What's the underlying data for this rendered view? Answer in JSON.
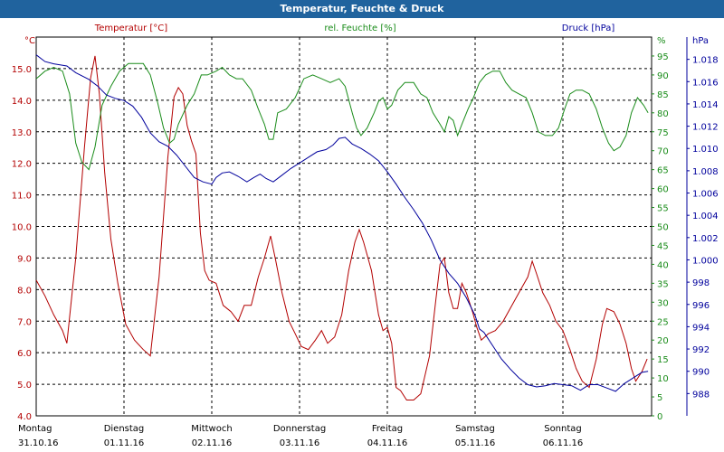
{
  "title": "Temperatur, Feuchte & Druck",
  "colors": {
    "temp": "#b30000",
    "humidity": "#1a8c1a",
    "pressure": "#00009c",
    "header": "#20639e"
  },
  "chart_data": {
    "type": "line",
    "title": "Temperatur, Feuchte & Druck",
    "grid": true,
    "x_range_days": [
      0,
      7
    ],
    "x_ticks": [
      {
        "day": "Montag",
        "date": "31.10.16",
        "pos": 0
      },
      {
        "day": "Dienstag",
        "date": "01.11.16",
        "pos": 1
      },
      {
        "day": "Mittwoch",
        "date": "02.11.16",
        "pos": 2
      },
      {
        "day": "Donnerstag",
        "date": "03.11.16",
        "pos": 3
      },
      {
        "day": "Freitag",
        "date": "04.11.16",
        "pos": 4
      },
      {
        "day": "Samstag",
        "date": "05.11.16",
        "pos": 5
      },
      {
        "day": "Sonntag",
        "date": "06.11.16",
        "pos": 6
      }
    ],
    "axes": {
      "temp": {
        "label": "Temperatur [°C]",
        "unit": "°C",
        "min": 4.0,
        "max": 16.0,
        "ticks": [
          "15.0",
          "14.0",
          "13.0",
          "12.0",
          "11.0",
          "10.0",
          "9.0",
          "8.0",
          "7.0",
          "6.0",
          "5.0",
          "4.0"
        ]
      },
      "humidity": {
        "label": "rel. Feuchte [%]",
        "unit": "%",
        "min": 0,
        "max": 100,
        "ticks": [
          "95",
          "90",
          "85",
          "80",
          "75",
          "70",
          "65",
          "60",
          "55",
          "50",
          "45",
          "40",
          "35",
          "30",
          "25",
          "20",
          "15",
          "10",
          "5",
          "0"
        ]
      },
      "pressure": {
        "label": "Druck [hPa]",
        "unit": "hPa",
        "min": 986,
        "max": 1020,
        "ticks": [
          "1.018",
          "1.016",
          "1.014",
          "1.012",
          "1.010",
          "1.008",
          "1.006",
          "1.004",
          "1.002",
          "1.000",
          "998",
          "996",
          "994",
          "992",
          "990",
          "988"
        ]
      }
    },
    "series": [
      {
        "name": "Temperatur [°C]",
        "axis": "temp",
        "color": "#b30000",
        "points": [
          [
            0,
            8.3
          ],
          [
            0.1,
            7.8
          ],
          [
            0.2,
            7.2
          ],
          [
            0.3,
            6.7
          ],
          [
            0.35,
            6.3
          ],
          [
            0.45,
            9.0
          ],
          [
            0.55,
            12.5
          ],
          [
            0.62,
            14.7
          ],
          [
            0.67,
            15.4
          ],
          [
            0.72,
            14.2
          ],
          [
            0.78,
            11.7
          ],
          [
            0.85,
            9.6
          ],
          [
            0.93,
            8.2
          ],
          [
            1.02,
            6.9
          ],
          [
            1.12,
            6.4
          ],
          [
            1.22,
            6.1
          ],
          [
            1.3,
            5.9
          ],
          [
            1.4,
            8.4
          ],
          [
            1.5,
            12.2
          ],
          [
            1.57,
            14.1
          ],
          [
            1.62,
            14.4
          ],
          [
            1.67,
            14.2
          ],
          [
            1.72,
            13.2
          ],
          [
            1.77,
            12.7
          ],
          [
            1.82,
            12.3
          ],
          [
            1.87,
            9.8
          ],
          [
            1.92,
            8.6
          ],
          [
            1.97,
            8.3
          ],
          [
            2.05,
            8.2
          ],
          [
            2.13,
            7.5
          ],
          [
            2.22,
            7.3
          ],
          [
            2.3,
            7.0
          ],
          [
            2.37,
            7.5
          ],
          [
            2.45,
            7.5
          ],
          [
            2.53,
            8.4
          ],
          [
            2.6,
            9.0
          ],
          [
            2.67,
            9.7
          ],
          [
            2.73,
            8.9
          ],
          [
            2.8,
            7.9
          ],
          [
            2.88,
            7.0
          ],
          [
            2.95,
            6.6
          ],
          [
            3.02,
            6.2
          ],
          [
            3.1,
            6.1
          ],
          [
            3.18,
            6.4
          ],
          [
            3.25,
            6.7
          ],
          [
            3.32,
            6.3
          ],
          [
            3.4,
            6.5
          ],
          [
            3.48,
            7.2
          ],
          [
            3.56,
            8.6
          ],
          [
            3.63,
            9.5
          ],
          [
            3.68,
            9.9
          ],
          [
            3.73,
            9.5
          ],
          [
            3.82,
            8.6
          ],
          [
            3.9,
            7.2
          ],
          [
            3.95,
            6.7
          ],
          [
            4.0,
            6.8
          ],
          [
            4.05,
            6.3
          ],
          [
            4.1,
            4.9
          ],
          [
            4.15,
            4.8
          ],
          [
            4.22,
            4.5
          ],
          [
            4.3,
            4.5
          ],
          [
            4.38,
            4.7
          ],
          [
            4.48,
            5.9
          ],
          [
            4.55,
            7.6
          ],
          [
            4.6,
            8.8
          ],
          [
            4.65,
            9.0
          ],
          [
            4.7,
            7.9
          ],
          [
            4.75,
            7.4
          ],
          [
            4.8,
            7.4
          ],
          [
            4.85,
            8.2
          ],
          [
            4.9,
            7.9
          ],
          [
            4.97,
            7.3
          ],
          [
            5.02,
            6.8
          ],
          [
            5.07,
            6.4
          ],
          [
            5.15,
            6.6
          ],
          [
            5.23,
            6.7
          ],
          [
            5.32,
            7.0
          ],
          [
            5.42,
            7.5
          ],
          [
            5.52,
            8.0
          ],
          [
            5.6,
            8.4
          ],
          [
            5.65,
            8.9
          ],
          [
            5.7,
            8.5
          ],
          [
            5.77,
            7.9
          ],
          [
            5.85,
            7.5
          ],
          [
            5.92,
            7.0
          ],
          [
            6.0,
            6.7
          ],
          [
            6.08,
            6.1
          ],
          [
            6.15,
            5.5
          ],
          [
            6.22,
            5.1
          ],
          [
            6.3,
            4.9
          ],
          [
            6.38,
            5.8
          ],
          [
            6.45,
            6.9
          ],
          [
            6.5,
            7.4
          ],
          [
            6.58,
            7.3
          ],
          [
            6.65,
            6.9
          ],
          [
            6.72,
            6.3
          ],
          [
            6.78,
            5.5
          ],
          [
            6.83,
            5.1
          ],
          [
            6.9,
            5.4
          ],
          [
            6.96,
            5.8
          ]
        ]
      },
      {
        "name": "rel. Feuchte [%]",
        "axis": "humidity",
        "color": "#1a8c1a",
        "points": [
          [
            0,
            89
          ],
          [
            0.1,
            91
          ],
          [
            0.2,
            92
          ],
          [
            0.3,
            91
          ],
          [
            0.38,
            85
          ],
          [
            0.45,
            72
          ],
          [
            0.52,
            67
          ],
          [
            0.6,
            65
          ],
          [
            0.67,
            71
          ],
          [
            0.75,
            82
          ],
          [
            0.85,
            87
          ],
          [
            0.95,
            91
          ],
          [
            1.05,
            93
          ],
          [
            1.15,
            93
          ],
          [
            1.22,
            93
          ],
          [
            1.3,
            90
          ],
          [
            1.38,
            83
          ],
          [
            1.45,
            76
          ],
          [
            1.52,
            72
          ],
          [
            1.57,
            73
          ],
          [
            1.62,
            77
          ],
          [
            1.72,
            82
          ],
          [
            1.8,
            85
          ],
          [
            1.88,
            90
          ],
          [
            1.95,
            90
          ],
          [
            2.05,
            91
          ],
          [
            2.12,
            92
          ],
          [
            2.2,
            90
          ],
          [
            2.28,
            89
          ],
          [
            2.35,
            89
          ],
          [
            2.45,
            86
          ],
          [
            2.53,
            81
          ],
          [
            2.6,
            77
          ],
          [
            2.65,
            73
          ],
          [
            2.7,
            73
          ],
          [
            2.75,
            80
          ],
          [
            2.85,
            81
          ],
          [
            2.95,
            84
          ],
          [
            3.05,
            89
          ],
          [
            3.15,
            90
          ],
          [
            3.25,
            89
          ],
          [
            3.35,
            88
          ],
          [
            3.45,
            89
          ],
          [
            3.52,
            87
          ],
          [
            3.6,
            80
          ],
          [
            3.65,
            76
          ],
          [
            3.7,
            74
          ],
          [
            3.77,
            76
          ],
          [
            3.85,
            80
          ],
          [
            3.9,
            83
          ],
          [
            3.95,
            84
          ],
          [
            4.0,
            81
          ],
          [
            4.05,
            82
          ],
          [
            4.12,
            86
          ],
          [
            4.2,
            88
          ],
          [
            4.3,
            88
          ],
          [
            4.38,
            85
          ],
          [
            4.45,
            84
          ],
          [
            4.52,
            80
          ],
          [
            4.6,
            77
          ],
          [
            4.65,
            75
          ],
          [
            4.7,
            79
          ],
          [
            4.75,
            78
          ],
          [
            4.8,
            74
          ],
          [
            4.85,
            77
          ],
          [
            4.92,
            81
          ],
          [
            4.98,
            84
          ],
          [
            5.05,
            88
          ],
          [
            5.12,
            90
          ],
          [
            5.2,
            91
          ],
          [
            5.28,
            91
          ],
          [
            5.35,
            88
          ],
          [
            5.42,
            86
          ],
          [
            5.5,
            85
          ],
          [
            5.58,
            84
          ],
          [
            5.65,
            80
          ],
          [
            5.72,
            75
          ],
          [
            5.8,
            74
          ],
          [
            5.88,
            74
          ],
          [
            5.95,
            76
          ],
          [
            6.02,
            81
          ],
          [
            6.08,
            85
          ],
          [
            6.15,
            86
          ],
          [
            6.22,
            86
          ],
          [
            6.3,
            85
          ],
          [
            6.38,
            81
          ],
          [
            6.45,
            76
          ],
          [
            6.52,
            72
          ],
          [
            6.58,
            70
          ],
          [
            6.65,
            71
          ],
          [
            6.72,
            74
          ],
          [
            6.78,
            80
          ],
          [
            6.85,
            84
          ],
          [
            6.92,
            82
          ],
          [
            6.97,
            80
          ]
        ]
      },
      {
        "name": "Druck [hPa]",
        "axis": "pressure",
        "color": "#00009c",
        "points": [
          [
            0,
            1018.4
          ],
          [
            0.1,
            1017.8
          ],
          [
            0.2,
            1017.6
          ],
          [
            0.35,
            1017.4
          ],
          [
            0.45,
            1016.8
          ],
          [
            0.6,
            1016.2
          ],
          [
            0.7,
            1015.6
          ],
          [
            0.8,
            1014.8
          ],
          [
            0.9,
            1014.5
          ],
          [
            1.0,
            1014.3
          ],
          [
            1.1,
            1013.8
          ],
          [
            1.2,
            1012.8
          ],
          [
            1.3,
            1011.4
          ],
          [
            1.4,
            1010.6
          ],
          [
            1.5,
            1010.2
          ],
          [
            1.6,
            1009.4
          ],
          [
            1.7,
            1008.4
          ],
          [
            1.8,
            1007.4
          ],
          [
            1.9,
            1007.0
          ],
          [
            2.0,
            1006.8
          ],
          [
            2.05,
            1007.4
          ],
          [
            2.12,
            1007.8
          ],
          [
            2.2,
            1007.9
          ],
          [
            2.3,
            1007.5
          ],
          [
            2.4,
            1007.0
          ],
          [
            2.48,
            1007.4
          ],
          [
            2.55,
            1007.7
          ],
          [
            2.62,
            1007.3
          ],
          [
            2.7,
            1007.0
          ],
          [
            2.8,
            1007.6
          ],
          [
            2.9,
            1008.2
          ],
          [
            3.0,
            1008.7
          ],
          [
            3.1,
            1009.2
          ],
          [
            3.2,
            1009.7
          ],
          [
            3.3,
            1009.9
          ],
          [
            3.38,
            1010.3
          ],
          [
            3.45,
            1010.9
          ],
          [
            3.52,
            1011.0
          ],
          [
            3.6,
            1010.4
          ],
          [
            3.7,
            1010.0
          ],
          [
            3.8,
            1009.5
          ],
          [
            3.9,
            1008.9
          ],
          [
            4.0,
            1007.9
          ],
          [
            4.1,
            1006.8
          ],
          [
            4.2,
            1005.6
          ],
          [
            4.3,
            1004.5
          ],
          [
            4.4,
            1003.3
          ],
          [
            4.5,
            1001.8
          ],
          [
            4.6,
            1000.0
          ],
          [
            4.7,
            998.8
          ],
          [
            4.8,
            997.9
          ],
          [
            4.9,
            996.6
          ],
          [
            5.0,
            995.0
          ],
          [
            5.05,
            993.8
          ],
          [
            5.1,
            993.5
          ],
          [
            5.2,
            992.3
          ],
          [
            5.3,
            991.1
          ],
          [
            5.4,
            990.2
          ],
          [
            5.5,
            989.4
          ],
          [
            5.6,
            988.8
          ],
          [
            5.7,
            988.6
          ],
          [
            5.8,
            988.7
          ],
          [
            5.9,
            988.9
          ],
          [
            6.0,
            988.8
          ],
          [
            6.1,
            988.7
          ],
          [
            6.2,
            988.3
          ],
          [
            6.3,
            988.8
          ],
          [
            6.4,
            988.8
          ],
          [
            6.5,
            988.5
          ],
          [
            6.6,
            988.2
          ],
          [
            6.7,
            988.9
          ],
          [
            6.8,
            989.4
          ],
          [
            6.9,
            989.9
          ],
          [
            6.97,
            990.0
          ]
        ]
      }
    ]
  }
}
